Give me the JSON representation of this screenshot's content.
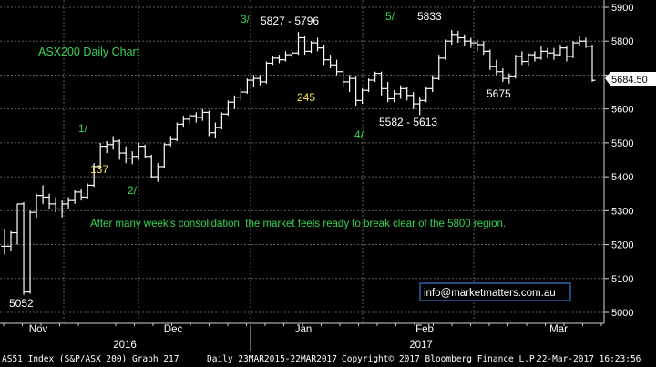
{
  "chart_data": {
    "type": "ohlc",
    "title": "ASX200 Daily Chart",
    "ylim": [
      4975,
      5940
    ],
    "y_ticks": [
      5000,
      5100,
      5200,
      5300,
      5400,
      5500,
      5600,
      5700,
      5800,
      5900
    ],
    "y_tick_labels": [
      "5000",
      "5100",
      "5200",
      "5300",
      "5400",
      "5500",
      "5600",
      "5700",
      "5800",
      "5900"
    ],
    "last_price": 5684.5,
    "last_price_label": "5684.50",
    "x_months": [
      "Nov",
      "Dec",
      "Jan",
      "Feb",
      "Mar"
    ],
    "x_years": [
      "2016",
      "2017"
    ],
    "grid": true,
    "bars": [
      {
        "o": 5195,
        "h": 5245,
        "l": 5170,
        "c": 5195
      },
      {
        "o": 5195,
        "h": 5240,
        "l": 5180,
        "c": 5235
      },
      {
        "o": 5235,
        "h": 5320,
        "l": 5200,
        "c": 5320
      },
      {
        "o": 5320,
        "h": 5325,
        "l": 5052,
        "c": 5060
      },
      {
        "o": 5060,
        "h": 5300,
        "l": 5055,
        "c": 5295
      },
      {
        "o": 5295,
        "h": 5350,
        "l": 5280,
        "c": 5345
      },
      {
        "o": 5345,
        "h": 5375,
        "l": 5320,
        "c": 5340
      },
      {
        "o": 5340,
        "h": 5350,
        "l": 5305,
        "c": 5320
      },
      {
        "o": 5320,
        "h": 5340,
        "l": 5295,
        "c": 5305
      },
      {
        "o": 5305,
        "h": 5330,
        "l": 5280,
        "c": 5320
      },
      {
        "o": 5320,
        "h": 5340,
        "l": 5305,
        "c": 5330
      },
      {
        "o": 5330,
        "h": 5360,
        "l": 5320,
        "c": 5355
      },
      {
        "o": 5355,
        "h": 5365,
        "l": 5330,
        "c": 5340
      },
      {
        "o": 5340,
        "h": 5380,
        "l": 5335,
        "c": 5375
      },
      {
        "o": 5375,
        "h": 5440,
        "l": 5370,
        "c": 5430
      },
      {
        "o": 5430,
        "h": 5500,
        "l": 5425,
        "c": 5490
      },
      {
        "o": 5490,
        "h": 5505,
        "l": 5470,
        "c": 5495
      },
      {
        "o": 5495,
        "h": 5520,
        "l": 5480,
        "c": 5505
      },
      {
        "o": 5505,
        "h": 5510,
        "l": 5450,
        "c": 5470
      },
      {
        "o": 5470,
        "h": 5490,
        "l": 5440,
        "c": 5455
      },
      {
        "o": 5455,
        "h": 5475,
        "l": 5437,
        "c": 5460
      },
      {
        "o": 5460,
        "h": 5500,
        "l": 5450,
        "c": 5490
      },
      {
        "o": 5490,
        "h": 5495,
        "l": 5455,
        "c": 5460
      },
      {
        "o": 5460,
        "h": 5465,
        "l": 5395,
        "c": 5400
      },
      {
        "o": 5400,
        "h": 5440,
        "l": 5385,
        "c": 5430
      },
      {
        "o": 5430,
        "h": 5500,
        "l": 5425,
        "c": 5495
      },
      {
        "o": 5495,
        "h": 5520,
        "l": 5490,
        "c": 5510
      },
      {
        "o": 5510,
        "h": 5560,
        "l": 5505,
        "c": 5555
      },
      {
        "o": 5555,
        "h": 5580,
        "l": 5545,
        "c": 5570
      },
      {
        "o": 5570,
        "h": 5585,
        "l": 5555,
        "c": 5580
      },
      {
        "o": 5580,
        "h": 5590,
        "l": 5560,
        "c": 5575
      },
      {
        "o": 5575,
        "h": 5600,
        "l": 5565,
        "c": 5590
      },
      {
        "o": 5590,
        "h": 5595,
        "l": 5520,
        "c": 5530
      },
      {
        "o": 5530,
        "h": 5560,
        "l": 5515,
        "c": 5545
      },
      {
        "o": 5545,
        "h": 5590,
        "l": 5540,
        "c": 5585
      },
      {
        "o": 5585,
        "h": 5625,
        "l": 5580,
        "c": 5620
      },
      {
        "o": 5620,
        "h": 5640,
        "l": 5600,
        "c": 5635
      },
      {
        "o": 5635,
        "h": 5660,
        "l": 5625,
        "c": 5650
      },
      {
        "o": 5650,
        "h": 5690,
        "l": 5645,
        "c": 5685
      },
      {
        "o": 5685,
        "h": 5700,
        "l": 5665,
        "c": 5690
      },
      {
        "o": 5690,
        "h": 5700,
        "l": 5670,
        "c": 5680
      },
      {
        "o": 5680,
        "h": 5740,
        "l": 5675,
        "c": 5735
      },
      {
        "o": 5735,
        "h": 5755,
        "l": 5730,
        "c": 5750
      },
      {
        "o": 5750,
        "h": 5760,
        "l": 5735,
        "c": 5745
      },
      {
        "o": 5745,
        "h": 5770,
        "l": 5740,
        "c": 5760
      },
      {
        "o": 5760,
        "h": 5775,
        "l": 5750,
        "c": 5765
      },
      {
        "o": 5765,
        "h": 5827,
        "l": 5760,
        "c": 5810
      },
      {
        "o": 5810,
        "h": 5815,
        "l": 5760,
        "c": 5770
      },
      {
        "o": 5770,
        "h": 5800,
        "l": 5765,
        "c": 5795
      },
      {
        "o": 5795,
        "h": 5810,
        "l": 5770,
        "c": 5780
      },
      {
        "o": 5780,
        "h": 5790,
        "l": 5730,
        "c": 5745
      },
      {
        "o": 5745,
        "h": 5760,
        "l": 5720,
        "c": 5730
      },
      {
        "o": 5730,
        "h": 5745,
        "l": 5700,
        "c": 5710
      },
      {
        "o": 5710,
        "h": 5715,
        "l": 5665,
        "c": 5680
      },
      {
        "o": 5680,
        "h": 5700,
        "l": 5650,
        "c": 5690
      },
      {
        "o": 5690,
        "h": 5695,
        "l": 5610,
        "c": 5625
      },
      {
        "o": 5625,
        "h": 5660,
        "l": 5615,
        "c": 5655
      },
      {
        "o": 5655,
        "h": 5690,
        "l": 5650,
        "c": 5685
      },
      {
        "o": 5685,
        "h": 5710,
        "l": 5680,
        "c": 5705
      },
      {
        "o": 5705,
        "h": 5710,
        "l": 5640,
        "c": 5660
      },
      {
        "o": 5660,
        "h": 5680,
        "l": 5620,
        "c": 5630
      },
      {
        "o": 5630,
        "h": 5655,
        "l": 5620,
        "c": 5645
      },
      {
        "o": 5645,
        "h": 5670,
        "l": 5630,
        "c": 5660
      },
      {
        "o": 5660,
        "h": 5665,
        "l": 5625,
        "c": 5640
      },
      {
        "o": 5640,
        "h": 5650,
        "l": 5600,
        "c": 5615
      },
      {
        "o": 5615,
        "h": 5635,
        "l": 5582,
        "c": 5625
      },
      {
        "o": 5625,
        "h": 5665,
        "l": 5620,
        "c": 5660
      },
      {
        "o": 5660,
        "h": 5700,
        "l": 5650,
        "c": 5690
      },
      {
        "o": 5690,
        "h": 5760,
        "l": 5685,
        "c": 5750
      },
      {
        "o": 5750,
        "h": 5805,
        "l": 5745,
        "c": 5800
      },
      {
        "o": 5800,
        "h": 5833,
        "l": 5790,
        "c": 5820
      },
      {
        "o": 5820,
        "h": 5830,
        "l": 5795,
        "c": 5810
      },
      {
        "o": 5810,
        "h": 5820,
        "l": 5785,
        "c": 5800
      },
      {
        "o": 5800,
        "h": 5810,
        "l": 5780,
        "c": 5795
      },
      {
        "o": 5795,
        "h": 5805,
        "l": 5770,
        "c": 5790
      },
      {
        "o": 5790,
        "h": 5800,
        "l": 5760,
        "c": 5770
      },
      {
        "o": 5770,
        "h": 5775,
        "l": 5715,
        "c": 5725
      },
      {
        "o": 5725,
        "h": 5745,
        "l": 5700,
        "c": 5710
      },
      {
        "o": 5710,
        "h": 5720,
        "l": 5680,
        "c": 5690
      },
      {
        "o": 5690,
        "h": 5705,
        "l": 5675,
        "c": 5695
      },
      {
        "o": 5695,
        "h": 5760,
        "l": 5690,
        "c": 5755
      },
      {
        "o": 5755,
        "h": 5770,
        "l": 5730,
        "c": 5740
      },
      {
        "o": 5740,
        "h": 5765,
        "l": 5725,
        "c": 5760
      },
      {
        "o": 5760,
        "h": 5770,
        "l": 5740,
        "c": 5750
      },
      {
        "o": 5750,
        "h": 5785,
        "l": 5745,
        "c": 5770
      },
      {
        "o": 5770,
        "h": 5780,
        "l": 5750,
        "c": 5765
      },
      {
        "o": 5765,
        "h": 5780,
        "l": 5745,
        "c": 5760
      },
      {
        "o": 5760,
        "h": 5790,
        "l": 5755,
        "c": 5780
      },
      {
        "o": 5780,
        "h": 5785,
        "l": 5740,
        "c": 5755
      },
      {
        "o": 5755,
        "h": 5800,
        "l": 5750,
        "c": 5795
      },
      {
        "o": 5795,
        "h": 5815,
        "l": 5785,
        "c": 5800
      },
      {
        "o": 5800,
        "h": 5810,
        "l": 5780,
        "c": 5785
      },
      {
        "o": 5785,
        "h": 5790,
        "l": 5680,
        "c": 5684.5
      }
    ],
    "annotations": [
      {
        "text": "5052",
        "color": "#ffffff"
      },
      {
        "text": "1/",
        "color": "#39d353"
      },
      {
        "text": "137",
        "color": "#f5e642"
      },
      {
        "text": "2/",
        "color": "#39d353"
      },
      {
        "text": "3/",
        "color": "#39d353"
      },
      {
        "text": "5827 - 5796",
        "color": "#ffffff"
      },
      {
        "text": "245",
        "color": "#f5e642"
      },
      {
        "text": "4/",
        "color": "#39d353"
      },
      {
        "text": "5582 - 5613",
        "color": "#ffffff"
      },
      {
        "text": "5/",
        "color": "#39d353"
      },
      {
        "text": "5833",
        "color": "#ffffff"
      },
      {
        "text": "5675",
        "color": "#ffffff"
      },
      {
        "text": "After many week's consolidation, the market feels ready to break clear of the 5800 region.",
        "color": "#39d353"
      }
    ],
    "watermark": "info@marketmatters.com.au",
    "colors": {
      "bars": "#ffffff",
      "grid": "#5a5a5a",
      "title": "#39d353",
      "watermark_border": "#3a78d8"
    }
  },
  "status_bar": {
    "index": "AS51 Index (S&P/ASX 200) Graph 217",
    "range": "Daily 23MAR2015-22MAR2017",
    "copyright": "Copyright© 2017 Bloomberg Finance L.P.",
    "timestamp": "22-Mar-2017 16:23:56"
  }
}
